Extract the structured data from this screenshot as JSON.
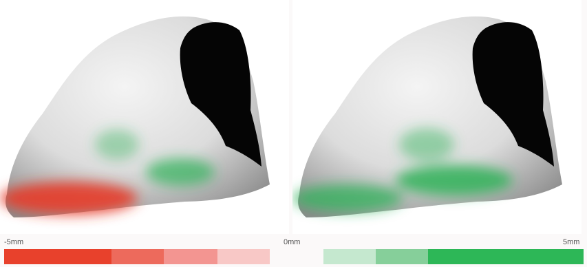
{
  "scale": {
    "min_label": "-5mm",
    "zero_label": "0mm",
    "max_label": "5mm",
    "negative_colors": [
      "#e8412c",
      "#ed6a5c",
      "#f39591",
      "#f8c8c6"
    ],
    "positive_colors": [
      "#c5e8cf",
      "#86cf9a",
      "#2db757"
    ]
  },
  "colors": {
    "surface": "#d9d9d9",
    "cavity": "#050505",
    "negative_deviation": "#e53b2a",
    "positive_deviation": "#2fb258"
  }
}
